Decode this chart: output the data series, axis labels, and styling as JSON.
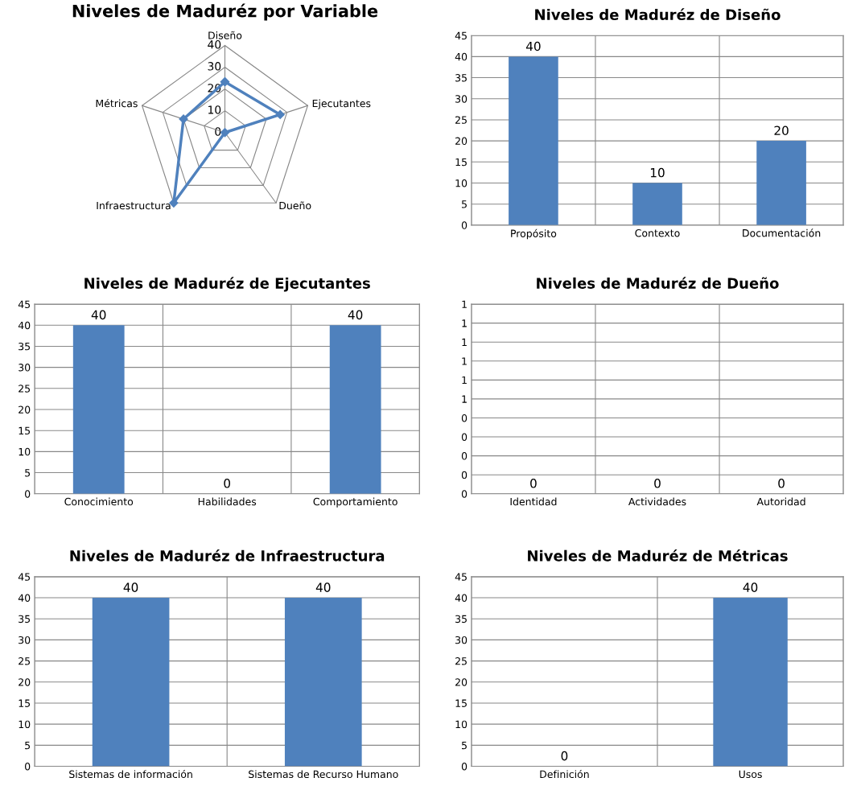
{
  "chart_data": [
    {
      "type": "radar",
      "title": "Niveles de Maduréz por Variable",
      "categories": [
        "Diseño",
        "Ejecutantes",
        "Dueño",
        "Infraestructura",
        "Métricas"
      ],
      "series": [
        {
          "color": "#4f81bd",
          "values": [
            23.3,
            26.7,
            0,
            40,
            20
          ]
        }
      ],
      "ylim": [
        0,
        40
      ],
      "yticks": [
        0,
        10,
        20,
        30,
        40
      ],
      "marker": "diamond",
      "grid": true
    },
    {
      "type": "bar",
      "title": "Niveles de Maduréz de Diseño",
      "categories": [
        "Propósito",
        "Contexto",
        "Documentación"
      ],
      "values": [
        40,
        10,
        20
      ],
      "color": "#4f81bd",
      "ylim": [
        0,
        45
      ],
      "yticks": [
        0,
        5,
        10,
        15,
        20,
        25,
        30,
        35,
        40,
        45
      ],
      "grid": true,
      "data_labels": true
    },
    {
      "type": "bar",
      "title": "Niveles de Maduréz de Ejecutantes",
      "categories": [
        "Conocimiento",
        "Habilidades",
        "Comportamiento"
      ],
      "values": [
        40,
        0,
        40
      ],
      "color": "#4f81bd",
      "ylim": [
        0,
        45
      ],
      "yticks": [
        0,
        5,
        10,
        15,
        20,
        25,
        30,
        35,
        40,
        45
      ],
      "grid": true,
      "data_labels": true
    },
    {
      "type": "bar",
      "title": "Niveles de Maduréz de Dueño",
      "categories": [
        "Identidad",
        "Actividades",
        "Autoridad"
      ],
      "values": [
        0,
        0,
        0
      ],
      "color": "#4f81bd",
      "ylim": [
        0,
        1
      ],
      "yticks": [
        0,
        {
          "value": 0.1,
          "label": "0"
        },
        {
          "value": 0.2,
          "label": "0"
        },
        {
          "value": 0.3,
          "label": "0"
        },
        {
          "value": 0.4,
          "label": "0"
        },
        {
          "value": 0.5,
          "label": "1"
        },
        {
          "value": 0.6,
          "label": "1"
        },
        {
          "value": 0.7,
          "label": "1"
        },
        {
          "value": 0.8,
          "label": "1"
        },
        {
          "value": 0.9,
          "label": "1"
        },
        1
      ],
      "grid": true,
      "data_labels": true
    },
    {
      "type": "bar",
      "title": "Niveles de Maduréz de Infraestructura",
      "categories": [
        "Sistemas de información",
        "Sistemas de Recurso Humano"
      ],
      "values": [
        40,
        40
      ],
      "color": "#4f81bd",
      "ylim": [
        0,
        45
      ],
      "yticks": [
        0,
        5,
        10,
        15,
        20,
        25,
        30,
        35,
        40,
        45
      ],
      "grid": true,
      "data_labels": true
    },
    {
      "type": "bar",
      "title": "Niveles de Maduréz de Métricas",
      "categories": [
        "Definición",
        "Usos"
      ],
      "values": [
        0,
        40
      ],
      "color": "#4f81bd",
      "ylim": [
        0,
        45
      ],
      "yticks": [
        0,
        5,
        10,
        15,
        20,
        25,
        30,
        35,
        40,
        45
      ],
      "grid": true,
      "data_labels": true
    }
  ]
}
